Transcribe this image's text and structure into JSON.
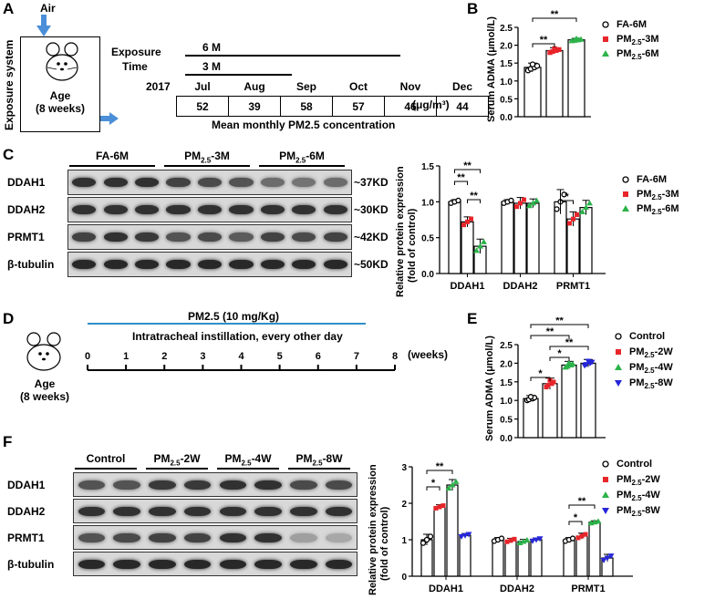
{
  "panels": {
    "A": "A",
    "B": "B",
    "C": "C",
    "D": "D",
    "E": "E",
    "F": "F"
  },
  "panelA": {
    "air": "Air",
    "system": "Exposure system",
    "age": "Age",
    "age_weeks": "(8 weeks)",
    "exposure": "Exposure",
    "time": "Time",
    "m6": "6 M",
    "m3": "3 M",
    "year": "2017",
    "months": [
      "Jul",
      "Aug",
      "Sep",
      "Oct",
      "Nov",
      "Dec"
    ],
    "values": [
      "52",
      "39",
      "58",
      "57",
      "46",
      "44"
    ],
    "unit": "(μg/m³)",
    "caption": "Mean monthly PM2.5 concentration"
  },
  "panelC": {
    "groups": [
      "FA-6M",
      "PM2.5-3M",
      "PM2.5-6M"
    ],
    "rows": [
      "DDAH1",
      "DDAH2",
      "PRMT1",
      "β-tubulin"
    ],
    "kd": [
      "~37KD",
      "~30KD",
      "~42KD",
      "~50KD"
    ]
  },
  "panelD": {
    "dose": "PM2.5 (10 mg/Kg)",
    "protocol": "Intratracheal instillation, every other day",
    "ticks": [
      "0",
      "1",
      "2",
      "3",
      "4",
      "5",
      "6",
      "7",
      "8"
    ],
    "unit": "(weeks)",
    "age": "Age",
    "age_weeks": "(8 weeks)"
  },
  "panelF": {
    "groups": [
      "Control",
      "PM2.5-2W",
      "PM2.5-4W",
      "PM2.5-8W"
    ],
    "rows": [
      "DDAH1",
      "DDAH2",
      "PRMT1",
      "β-tubulin"
    ]
  },
  "colors": {
    "black": "#000000",
    "red": "#e8252a",
    "green": "#2cb34a",
    "blue": "#2626d9"
  },
  "chart_data": [
    {
      "id": "B",
      "type": "bar",
      "ylabel": "Serum ADMA (μmol/L)",
      "ylim": [
        0,
        2.5
      ],
      "yticks": [
        "0.0",
        "0.5",
        "1.0",
        "1.5",
        "2.0",
        "2.5"
      ],
      "categories": [
        "FA-6M",
        "PM2.5-3M",
        "PM2.5-6M"
      ],
      "values": [
        1.38,
        1.85,
        2.15
      ],
      "errors": [
        0.12,
        0.08,
        0.04
      ],
      "legend": [
        "FA-6M",
        "PM2.5-3M",
        "PM2.5-6M"
      ],
      "significance": [
        "**",
        "**"
      ]
    },
    {
      "id": "C",
      "type": "bar",
      "ylabel": "Relative protein expression (fold of control)",
      "ylim": [
        0,
        1.5
      ],
      "yticks": [
        "0.0",
        "0.5",
        "1.0",
        "1.5"
      ],
      "categories": [
        "DDAH1",
        "DDAH2",
        "PRMT1"
      ],
      "series": [
        {
          "name": "FA-6M",
          "values": [
            1.0,
            1.0,
            1.0
          ],
          "errors": [
            0.03,
            0.03,
            0.17
          ]
        },
        {
          "name": "PM2.5-3M",
          "values": [
            0.72,
            0.98,
            0.76
          ],
          "errors": [
            0.07,
            0.08,
            0.1
          ]
        },
        {
          "name": "PM2.5-6M",
          "values": [
            0.38,
            0.98,
            0.92
          ],
          "errors": [
            0.1,
            0.06,
            0.1
          ]
        }
      ],
      "significance": [
        "**",
        "**",
        "**",
        "*"
      ]
    },
    {
      "id": "E",
      "type": "bar",
      "ylabel": "Serum ADMA (μmol/L)",
      "ylim": [
        0,
        2.5
      ],
      "yticks": [
        "0.0",
        "0.5",
        "1.0",
        "1.5",
        "2.0",
        "2.5"
      ],
      "categories": [
        "Control",
        "PM2.5-2W",
        "PM2.5-4W",
        "PM2.5-8W"
      ],
      "values": [
        1.05,
        1.45,
        1.95,
        2.0
      ],
      "errors": [
        0.08,
        0.15,
        0.1,
        0.1
      ],
      "legend": [
        "Control",
        "PM2.5-2W",
        "PM2.5-4W",
        "PM2.5-8W"
      ],
      "significance": [
        "**",
        "**",
        "**",
        "*",
        "*"
      ]
    },
    {
      "id": "F",
      "type": "bar",
      "ylabel": "Relative protein expression (fold of control)",
      "ylim": [
        0,
        3
      ],
      "yticks": [
        "0",
        "1",
        "2",
        "3"
      ],
      "categories": [
        "DDAH1",
        "DDAH2",
        "PRMT1"
      ],
      "series": [
        {
          "name": "Control",
          "values": [
            1.0,
            1.0,
            1.0
          ],
          "errors": [
            0.15,
            0.06,
            0.06
          ]
        },
        {
          "name": "PM2.5-2W",
          "values": [
            1.9,
            0.98,
            1.1
          ],
          "errors": [
            0.06,
            0.06,
            0.08
          ]
        },
        {
          "name": "PM2.5-4W",
          "values": [
            2.5,
            0.95,
            1.48
          ],
          "errors": [
            0.15,
            0.06,
            0.04
          ]
        },
        {
          "name": "PM2.5-8W",
          "values": [
            1.12,
            1.0,
            0.5
          ],
          "errors": [
            0.05,
            0.05,
            0.1
          ]
        }
      ],
      "significance": [
        "**",
        "*",
        "**",
        "*"
      ]
    }
  ]
}
